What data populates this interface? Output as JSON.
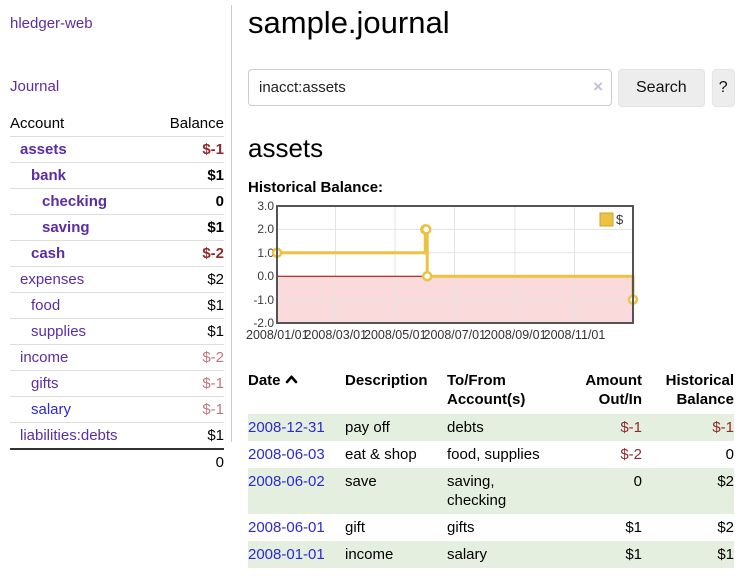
{
  "sidebar": {
    "app_title": "hledger-web",
    "journal_link": "Journal",
    "accounts_table": {
      "headers": {
        "account": "Account",
        "balance": "Balance"
      },
      "rows": [
        {
          "name": "assets",
          "depth": 0,
          "bold": true,
          "link_color": "purple",
          "balance": "$-1",
          "balance_class": "neg"
        },
        {
          "name": "bank",
          "depth": 1,
          "bold": true,
          "link_color": "purple",
          "balance": "$1",
          "balance_class": ""
        },
        {
          "name": "checking",
          "depth": 2,
          "bold": true,
          "link_color": "purple",
          "balance": "0",
          "balance_class": ""
        },
        {
          "name": "saving",
          "depth": 2,
          "bold": true,
          "link_color": "purple",
          "balance": "$1",
          "balance_class": ""
        },
        {
          "name": "cash",
          "depth": 1,
          "bold": true,
          "link_color": "purple",
          "balance": "$-2",
          "balance_class": "neg"
        },
        {
          "name": "expenses",
          "depth": 0,
          "bold": false,
          "link_color": "purple",
          "balance": "$2",
          "balance_class": ""
        },
        {
          "name": "food",
          "depth": 1,
          "bold": false,
          "link_color": "purple",
          "balance": "$1",
          "balance_class": ""
        },
        {
          "name": "supplies",
          "depth": 1,
          "bold": false,
          "link_color": "purple",
          "balance": "$1",
          "balance_class": ""
        },
        {
          "name": "income",
          "depth": 0,
          "bold": false,
          "link_color": "purple",
          "balance": "$-2",
          "balance_class": "neg-faded"
        },
        {
          "name": "gifts",
          "depth": 1,
          "bold": false,
          "link_color": "purple",
          "balance": "$-1",
          "balance_class": "neg-faded"
        },
        {
          "name": "salary",
          "depth": 1,
          "bold": false,
          "link_color": "blue",
          "balance": "$-1",
          "balance_class": "neg-faded"
        },
        {
          "name": "liabilities:debts",
          "depth": 0,
          "bold": false,
          "link_color": "purple",
          "balance": "$1",
          "balance_class": ""
        }
      ],
      "total": "0"
    }
  },
  "header": {
    "title": "sample.journal"
  },
  "search": {
    "value": "inacct:assets",
    "clear_icon": "×",
    "button_label": "Search",
    "help_label": "?"
  },
  "account_page": {
    "heading": "assets",
    "chart_label": "Historical Balance:"
  },
  "chart_data": {
    "type": "line",
    "step": true,
    "series": [
      {
        "name": "$",
        "color": "#edc240",
        "points": [
          [
            "2008-01-01",
            1
          ],
          [
            "2008-06-01",
            2
          ],
          [
            "2008-06-02",
            2
          ],
          [
            "2008-06-03",
            0
          ],
          [
            "2008-12-31",
            -1
          ]
        ]
      }
    ],
    "x_range": [
      "2008-01-01",
      "2008-12-31"
    ],
    "ylim": [
      -2,
      3
    ],
    "y_ticks": [
      "3.0",
      "2.0",
      "1.0",
      "0.0",
      "-1.0",
      "-2.0"
    ],
    "x_ticks": [
      "2008/01/01",
      "2008/03/01",
      "2008/05/01",
      "2008/07/01",
      "2008/09/01",
      "2008/11/01"
    ],
    "legend": {
      "label": "$",
      "position": "top-right"
    },
    "grid": true,
    "negative_region_color": "#fadada",
    "zero_line_color": "#990000",
    "border_color": "#545454",
    "grid_color": "#e3e3e3"
  },
  "register_table": {
    "headers": {
      "date": "Date",
      "sort_icon": "caret-up",
      "description": "Description",
      "accounts": "To/From Account(s)",
      "amount": "Amount Out/In",
      "balance": "Historical Balance"
    },
    "rows": [
      {
        "date": "2008-12-31",
        "description": "pay off",
        "accounts": "debts",
        "amount": "$-1",
        "amount_neg": true,
        "balance": "$-1",
        "balance_neg": true
      },
      {
        "date": "2008-06-03",
        "description": "eat & shop",
        "accounts": "food, supplies",
        "amount": "$-2",
        "amount_neg": true,
        "balance": "0",
        "balance_neg": false
      },
      {
        "date": "2008-06-02",
        "description": "save",
        "accounts": "saving, checking",
        "amount": "0",
        "amount_neg": false,
        "balance": "$2",
        "balance_neg": false
      },
      {
        "date": "2008-06-01",
        "description": "gift",
        "accounts": "gifts",
        "amount": "$1",
        "amount_neg": false,
        "balance": "$2",
        "balance_neg": false
      },
      {
        "date": "2008-01-01",
        "description": "income",
        "accounts": "salary",
        "amount": "$1",
        "amount_neg": false,
        "balance": "$1",
        "balance_neg": false
      }
    ]
  }
}
